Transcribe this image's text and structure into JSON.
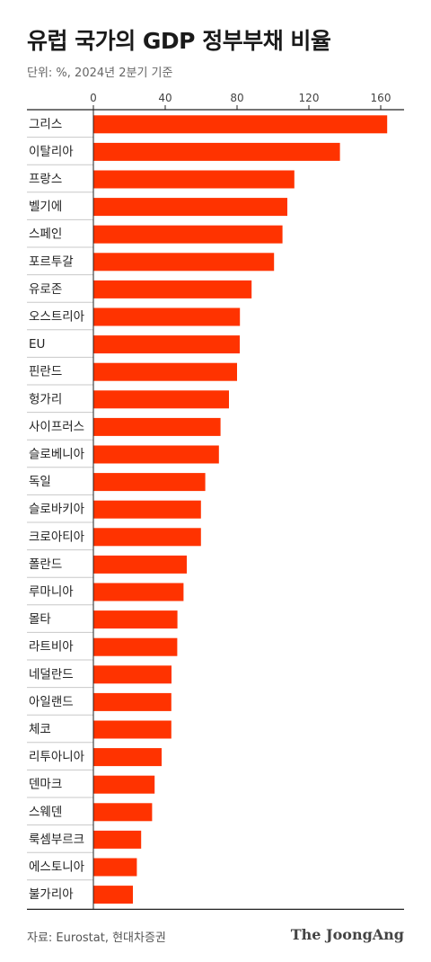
{
  "header": {
    "title": "유럽 국가의 GDP 정부부채 비율",
    "subtitle": "단위: %, 2024년 2분기 기준"
  },
  "footer": {
    "source": "자료: Eurostat, 현대차증권",
    "brand": "The JoongAng"
  },
  "colors": {
    "bar": "#ff3300",
    "axis": "#222222",
    "separator": "#c8c8c8"
  },
  "chart_data": {
    "type": "bar",
    "orientation": "horizontal",
    "title": "유럽 국가의 GDP 정부부채 비율",
    "unit": "%",
    "xlim": [
      0,
      170
    ],
    "ticks": [
      0,
      40,
      80,
      120,
      160
    ],
    "grid": false,
    "categories": [
      "그리스",
      "이탈리아",
      "프랑스",
      "벨기에",
      "스페인",
      "포르투갈",
      "유로존",
      "오스트리아",
      "EU",
      "핀란드",
      "헝가리",
      "사이프러스",
      "슬로베니아",
      "독일",
      "슬로바키아",
      "크로아티아",
      "폴란드",
      "루마니아",
      "몰타",
      "라트비아",
      "네덜란드",
      "아일랜드",
      "체코",
      "리투아니아",
      "덴마크",
      "스웨덴",
      "룩셈부르크",
      "에스토니아",
      "불가리아"
    ],
    "values": [
      163.6,
      137.3,
      111.9,
      108.0,
      105.3,
      100.6,
      88.1,
      81.6,
      81.5,
      80.0,
      75.5,
      70.8,
      69.9,
      62.3,
      59.9,
      59.9,
      52.0,
      50.2,
      46.8,
      46.7,
      43.5,
      43.4,
      43.4,
      38.0,
      34.1,
      32.7,
      26.6,
      24.2,
      22.0
    ]
  }
}
